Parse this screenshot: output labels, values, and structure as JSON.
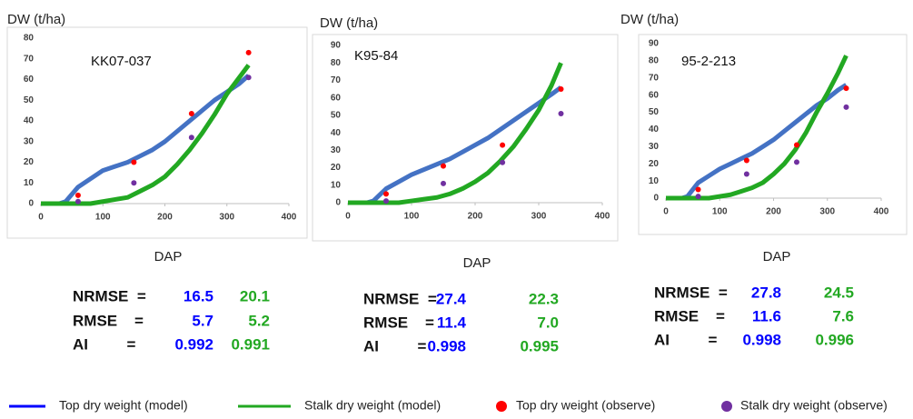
{
  "legend_position": "bottom",
  "chart_data": [
    {
      "type": "line",
      "name": "KK07-037",
      "y_label": "DW (t/ha)",
      "x_label": "DAP",
      "xlim": [
        0,
        400
      ],
      "ylim": [
        0,
        80
      ],
      "xticks": [
        0,
        100,
        200,
        300,
        400
      ],
      "yticks": [
        0,
        10,
        20,
        30,
        40,
        50,
        60,
        70,
        80
      ],
      "series": [
        {
          "name": "Top dry weight (model)",
          "kind": "line",
          "color": "#4472c4",
          "x": [
            0,
            30,
            40,
            60,
            80,
            100,
            120,
            140,
            160,
            180,
            200,
            220,
            240,
            260,
            280,
            300,
            320,
            335
          ],
          "values": [
            0,
            0,
            1,
            8,
            12,
            16,
            18,
            20,
            23,
            26,
            30,
            35,
            40,
            45,
            50,
            54,
            58,
            62
          ]
        },
        {
          "name": "Stalk dry weight (model)",
          "kind": "line",
          "color": "#22a822",
          "x": [
            0,
            30,
            40,
            60,
            80,
            100,
            120,
            140,
            160,
            180,
            200,
            220,
            240,
            260,
            280,
            300,
            320,
            335
          ],
          "values": [
            0,
            0,
            0,
            0,
            0,
            1,
            2,
            3,
            6,
            9,
            13,
            19,
            26,
            34,
            43,
            53,
            61,
            67
          ]
        },
        {
          "name": "Top dry weight (observe)",
          "kind": "scatter",
          "color": "#ff0000",
          "x": [
            60,
            150,
            243,
            335
          ],
          "values": [
            4,
            20,
            43.5,
            73
          ]
        },
        {
          "name": "Stalk dry weight (observe)",
          "kind": "scatter",
          "color": "#7030a0",
          "x": [
            60,
            150,
            243,
            335
          ],
          "values": [
            1,
            10,
            32,
            61
          ]
        }
      ],
      "stats": [
        {
          "label": "NRMSE  =",
          "values": [
            16.5,
            20.1
          ]
        },
        {
          "label": "RMSE    =",
          "values": [
            5.7,
            5.2
          ]
        },
        {
          "label": "AI         =",
          "values": [
            0.992,
            0.991
          ]
        }
      ]
    },
    {
      "type": "line",
      "name": "K95-84",
      "y_label": "DW (t/ha)",
      "x_label": "DAP",
      "xlim": [
        0,
        400
      ],
      "ylim": [
        0,
        90
      ],
      "xticks": [
        0,
        100,
        200,
        300,
        400
      ],
      "yticks": [
        0,
        10,
        20,
        30,
        40,
        50,
        60,
        70,
        80,
        90
      ],
      "series": [
        {
          "kind": "line",
          "color": "#4472c4",
          "x": [
            0,
            30,
            40,
            60,
            80,
            100,
            120,
            140,
            160,
            180,
            200,
            220,
            240,
            260,
            280,
            300,
            320,
            335
          ],
          "values": [
            0,
            0,
            1,
            8,
            12,
            16,
            19,
            22,
            25,
            29,
            33,
            37,
            42,
            47,
            52,
            57,
            62,
            66
          ]
        },
        {
          "kind": "line",
          "color": "#22a822",
          "x": [
            0,
            30,
            40,
            60,
            80,
            100,
            120,
            140,
            160,
            180,
            200,
            220,
            240,
            260,
            280,
            300,
            320,
            335
          ],
          "values": [
            0,
            0,
            0,
            0,
            0,
            1,
            2,
            3,
            5,
            8,
            12,
            17,
            24,
            32,
            42,
            53,
            67,
            80
          ]
        },
        {
          "kind": "scatter",
          "color": "#ff0000",
          "x": [
            60,
            150,
            243,
            335
          ],
          "values": [
            5,
            21,
            33,
            65
          ]
        },
        {
          "kind": "scatter",
          "color": "#7030a0",
          "x": [
            60,
            150,
            243,
            335
          ],
          "values": [
            1,
            11,
            23,
            51
          ]
        }
      ],
      "stats": [
        {
          "label": "NRMSE  =",
          "values": [
            27.4,
            22.3
          ]
        },
        {
          "label": "RMSE    =",
          "values": [
            11.4,
            {
              "value": 7,
              "label": "7.0"
            }
          ]
        },
        {
          "label": "AI         =",
          "values": [
            0.998,
            0.995
          ]
        }
      ]
    },
    {
      "type": "line",
      "name": "95-2-213",
      "y_label": "DW (t/ha)",
      "x_label": "DAP",
      "xlim": [
        0,
        400
      ],
      "ylim": [
        0,
        90
      ],
      "xticks": [
        0,
        100,
        200,
        300,
        400
      ],
      "yticks": [
        0,
        10,
        20,
        30,
        40,
        50,
        60,
        70,
        80,
        90
      ],
      "series": [
        {
          "kind": "line",
          "color": "#4472c4",
          "x": [
            0,
            30,
            40,
            60,
            80,
            100,
            120,
            140,
            160,
            180,
            200,
            220,
            240,
            260,
            280,
            300,
            320,
            335
          ],
          "values": [
            0,
            0,
            1,
            9,
            13,
            17,
            20,
            23,
            26,
            30,
            34,
            39,
            44,
            49,
            54,
            58,
            63,
            66
          ]
        },
        {
          "kind": "line",
          "color": "#22a822",
          "x": [
            0,
            30,
            40,
            60,
            80,
            100,
            120,
            140,
            160,
            180,
            200,
            220,
            240,
            260,
            280,
            300,
            320,
            335
          ],
          "values": [
            0,
            0,
            0,
            0,
            0,
            1,
            2,
            4,
            6,
            9,
            14,
            20,
            28,
            38,
            50,
            61,
            73,
            83
          ]
        },
        {
          "kind": "scatter",
          "color": "#ff0000",
          "x": [
            60,
            150,
            243,
            335
          ],
          "values": [
            5,
            22,
            31,
            64
          ]
        },
        {
          "kind": "scatter",
          "color": "#7030a0",
          "x": [
            60,
            150,
            243,
            335
          ],
          "values": [
            1,
            14,
            21,
            53
          ]
        }
      ],
      "stats": [
        {
          "label": "NRMSE  =",
          "values": [
            27.8,
            24.5
          ]
        },
        {
          "label": "RMSE    =",
          "values": [
            11.6,
            7.6
          ]
        },
        {
          "label": "AI         =",
          "values": [
            0.998,
            0.996
          ]
        }
      ]
    }
  ]
}
